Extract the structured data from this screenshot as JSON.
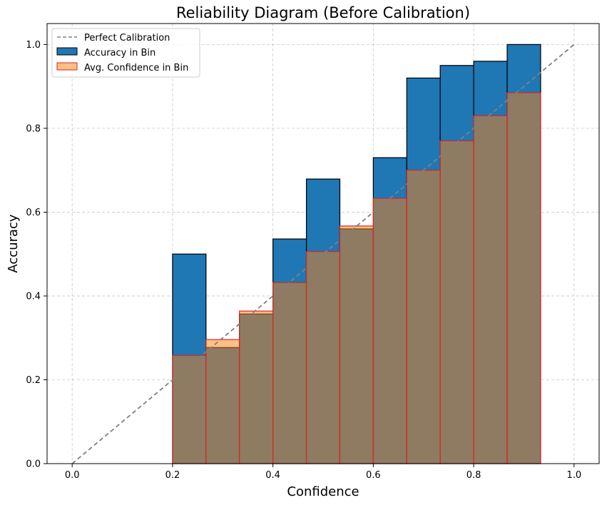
{
  "chart_data": {
    "type": "bar",
    "title": "Reliability Diagram (Before Calibration)",
    "xlabel": "Confidence",
    "ylabel": "Accuracy",
    "xlim": [
      -0.05,
      1.05
    ],
    "ylim": [
      0,
      1.05
    ],
    "xticks": [
      "0.0",
      "0.2",
      "0.4",
      "0.6",
      "0.8",
      "1.0"
    ],
    "yticks": [
      "0.0",
      "0.2",
      "0.4",
      "0.6",
      "0.8",
      "1.0"
    ],
    "xtick_values": [
      0,
      0.2,
      0.4,
      0.6,
      0.8,
      1.0
    ],
    "ytick_values": [
      0,
      0.2,
      0.4,
      0.6,
      0.8,
      1.0
    ],
    "grid": true,
    "legend_position": "top-left",
    "bin_width": 0.0667,
    "bin_starts": [
      0.2,
      0.2667,
      0.3333,
      0.4,
      0.4667,
      0.5333,
      0.6,
      0.6667,
      0.7333,
      0.8,
      0.8667
    ],
    "series": [
      {
        "name": "Accuracy in Bin",
        "kind": "bar",
        "color": "#1f77b4",
        "edge_color": "#000000",
        "values": [
          0.5,
          0.277,
          0.357,
          0.536,
          0.679,
          0.56,
          0.73,
          0.92,
          0.95,
          0.96,
          1.0
        ]
      },
      {
        "name": "Avg. Confidence in Bin",
        "kind": "bar",
        "color": "#ff7f0e",
        "edge_color": "#d62728",
        "alpha": 0.5,
        "values": [
          0.258,
          0.296,
          0.364,
          0.432,
          0.506,
          0.567,
          0.633,
          0.7,
          0.77,
          0.83,
          0.885
        ]
      },
      {
        "name": "Perfect Calibration",
        "kind": "line",
        "style": "dashed",
        "color": "#808080",
        "x": [
          0,
          1
        ],
        "y": [
          0,
          1
        ]
      }
    ]
  }
}
